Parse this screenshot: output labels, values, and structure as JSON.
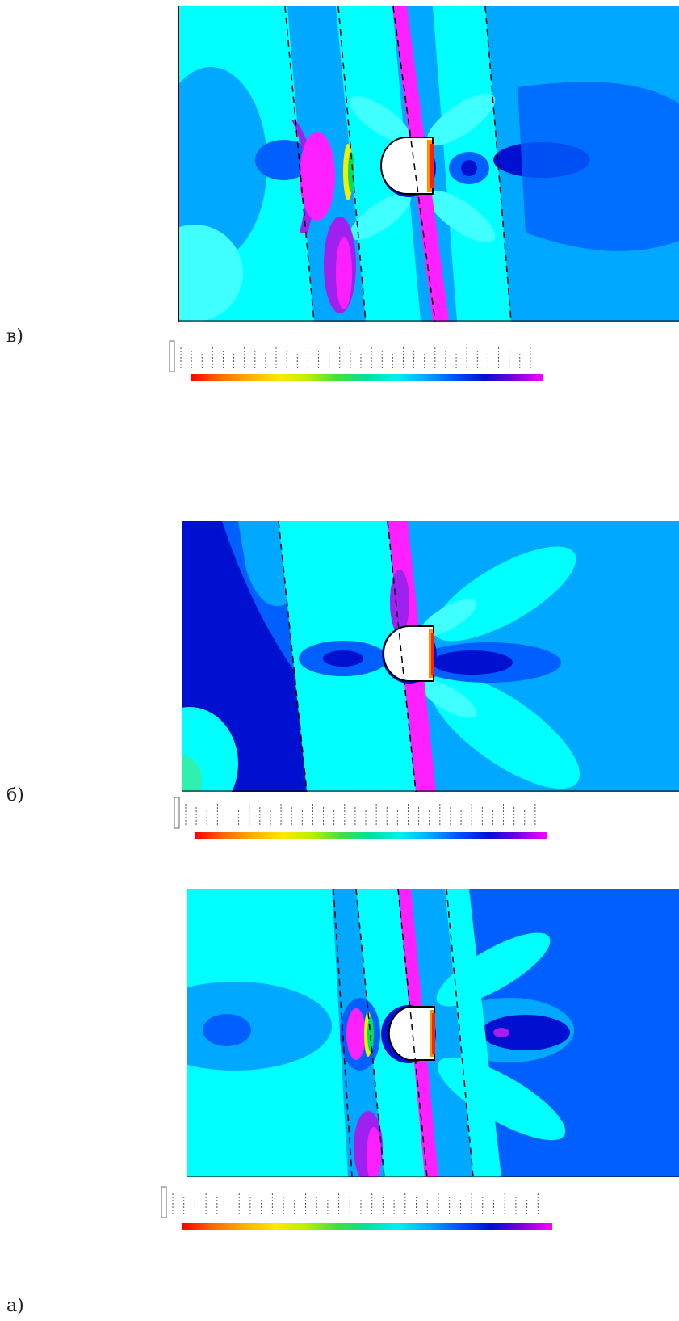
{
  "panels": [
    {
      "label": "в)"
    },
    {
      "label": "б)"
    },
    {
      "label": "а)"
    }
  ],
  "colorbar": {
    "stops": [
      "#ff0000",
      "#ff6a00",
      "#ffb000",
      "#ffe800",
      "#b8f000",
      "#40e040",
      "#00e0a0",
      "#00f0f0",
      "#00a8ff",
      "#0050ff",
      "#0010d0",
      "#7a00e0",
      "#ff00ff"
    ]
  },
  "field_colors": {
    "bg_cyan": "#00ffff",
    "light_blue": "#00a8ff",
    "medium_blue": "#0060ff",
    "deep_blue": "#1818e0",
    "light_cyan": "#40ffff",
    "green_cyan": "#30f0b0",
    "magenta": "#ff20ff",
    "purple": "#a020f0",
    "red": "#ff2000",
    "orange": "#ff9000",
    "yellow": "#f0f000",
    "green": "#00e060",
    "inclusion": "#ffffff",
    "outline": "#000000"
  }
}
